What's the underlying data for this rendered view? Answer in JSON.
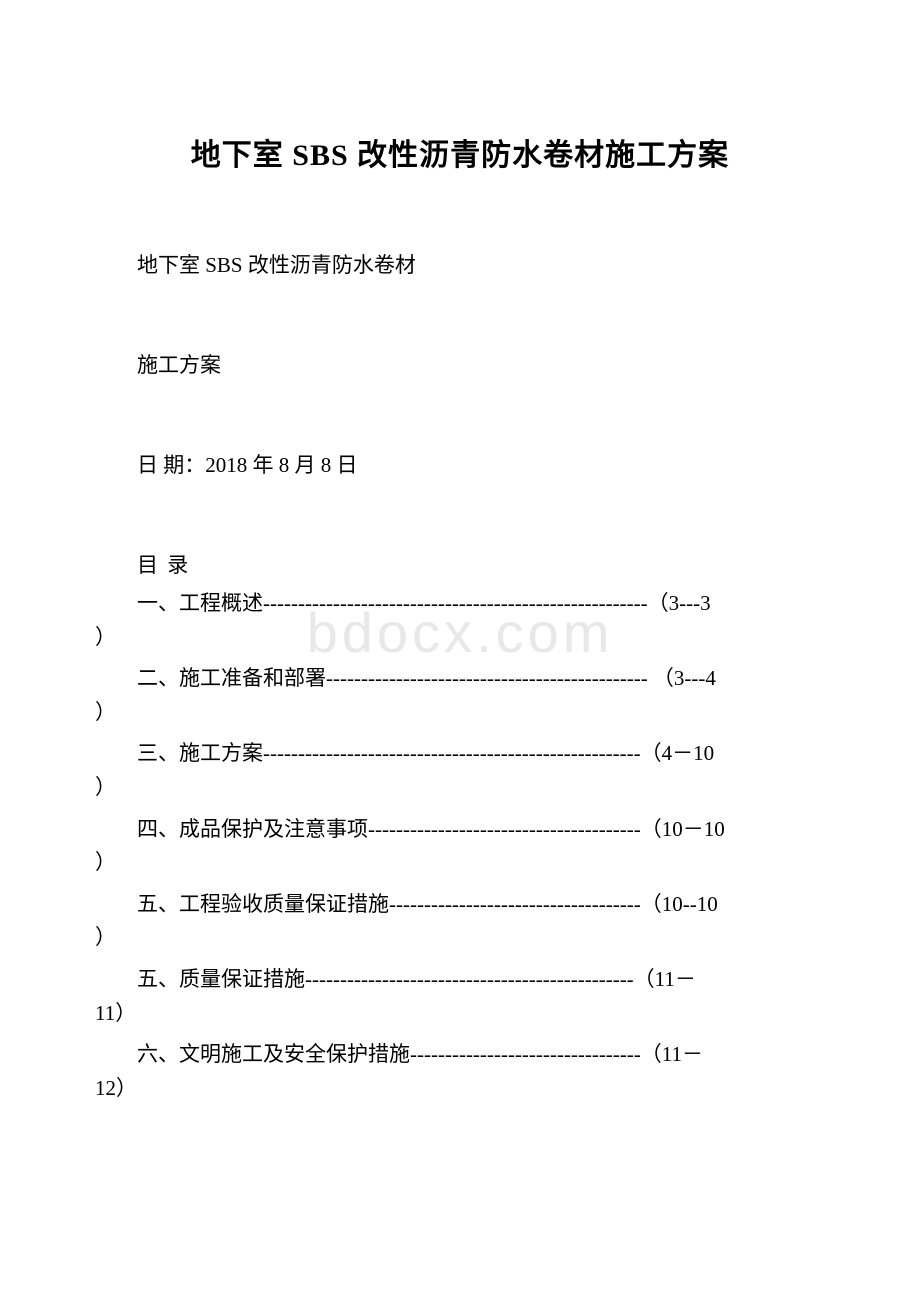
{
  "title": "地下室 SBS 改性沥青防水卷材施工方案",
  "subtitle": "地下室 SBS 改性沥青防水卷材",
  "planLabel": "施工方案",
  "dateLine": "日 期：2018 年 8 月 8 日",
  "tocHeader": "目 录",
  "watermark": "bdocx.com",
  "tocItems": [
    {
      "line1": "一、工程概述-------------------------------------------------------（3---3",
      "line2": "）"
    },
    {
      "line1": "二、施工准备和部署---------------------------------------------- （3---4",
      "line2": "）"
    },
    {
      "line1": "三、施工方案------------------------------------------------------（4－10",
      "line2": "）"
    },
    {
      "line1": "四、成品保护及注意事项---------------------------------------（10－10",
      "line2": "）"
    },
    {
      "line1": "五、工程验收质量保证措施------------------------------------（10--10",
      "line2": "）"
    },
    {
      "line1": "五、质量保证措施-----------------------------------------------（11－",
      "line2": "11）"
    },
    {
      "line1": "六、文明施工及安全保护措施---------------------------------（11－",
      "line2": "12）"
    }
  ]
}
